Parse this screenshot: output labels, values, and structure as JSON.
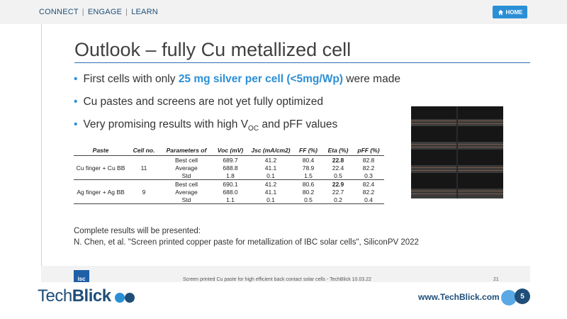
{
  "topnav": {
    "connect": "CONNECT",
    "engage": "ENGAGE",
    "learn": "LEARN",
    "sep": "|"
  },
  "home_button": {
    "label": "HOME",
    "icon": "home-icon"
  },
  "slide": {
    "title": "Outlook – fully Cu metallized cell",
    "bullets": [
      {
        "pre": "First cells with only ",
        "highlight": "25 mg silver per cell (<5mg/Wp)",
        "post": " were made"
      },
      {
        "text": "Cu pastes and screens are not yet fully optimized"
      },
      {
        "pre": "Very promising results with high V",
        "sub": "OC",
        "post": " and pFF values"
      }
    ],
    "table": {
      "headers": [
        "Paste",
        "Cell no.",
        "Parameters of",
        "Voc (mV)",
        "Jsc (mA/cm2)",
        "FF (%)",
        "Eta (%)",
        "pFF (%)"
      ],
      "groups": [
        {
          "paste": "Cu finger + Cu BB",
          "cell_no": "11",
          "rows": [
            [
              "Best cell",
              "689.7",
              "41.2",
              "80.4",
              "22.8",
              "82.8"
            ],
            [
              "Average",
              "688.8",
              "41.1",
              "78.9",
              "22.4",
              "82.2"
            ],
            [
              "Std",
              "1.8",
              "0.1",
              "1.5",
              "0.5",
              "0.3"
            ]
          ]
        },
        {
          "paste": "Ag finger + Ag BB",
          "cell_no": "9",
          "rows": [
            [
              "Best cell",
              "690.1",
              "41.2",
              "80.6",
              "22.9",
              "82.4"
            ],
            [
              "Average",
              "688.0",
              "41.1",
              "80.2",
              "22.7",
              "82.2"
            ],
            [
              "Std",
              "1.1",
              "0.1",
              "0.5",
              "0.2",
              "0.4"
            ]
          ]
        }
      ]
    },
    "results_line1": "Complete results will be presented:",
    "results_line2": "N. Chen, et al. \"Screen printed copper paste for metallization of IBC solar cells\", SiliconPV 2022",
    "footer_text": "Screen printed Cu paste for high efficient back contact solar cells - TechBlick 10.03.22",
    "slide_number": "21",
    "isc_logo": "isc"
  },
  "bottom": {
    "logo_light": "Tech",
    "logo_bold": "Blick",
    "url": "www.TechBlick.com",
    "page": "5"
  },
  "colors": {
    "accent": "#2b8fd6",
    "brand": "#1f4e79"
  }
}
